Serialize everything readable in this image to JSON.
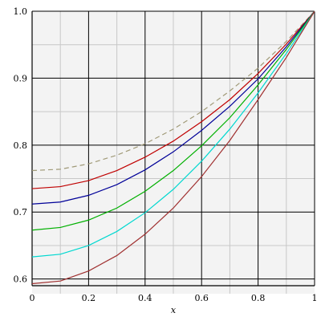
{
  "chart_data": {
    "type": "line",
    "xlabel": "x",
    "ylabel": "",
    "xlim": [
      0,
      1
    ],
    "ylim": [
      0.59,
      1.0
    ],
    "xticks": [
      0,
      0.2,
      0.4,
      0.6,
      0.8,
      1
    ],
    "xtick_labels": [
      "0",
      "0.2",
      "0.4",
      "0.6",
      "0.8",
      "1"
    ],
    "yticks": [
      0.6,
      0.7,
      0.8,
      0.9,
      1.0
    ],
    "ytick_labels": [
      "0.6",
      "0.7",
      "0.8",
      "0.9",
      "1.0"
    ],
    "grid": true,
    "x": [
      0,
      0.1,
      0.2,
      0.3,
      0.4,
      0.5,
      0.6,
      0.7,
      0.8,
      0.9,
      1.0
    ],
    "series": [
      {
        "color": "#a09a78",
        "dashed": true,
        "values": [
          0.762,
          0.764,
          0.772,
          0.785,
          0.802,
          0.824,
          0.85,
          0.881,
          0.915,
          0.955,
          1.0
        ]
      },
      {
        "color": "#c00000",
        "dashed": false,
        "values": [
          0.735,
          0.738,
          0.747,
          0.762,
          0.782,
          0.806,
          0.835,
          0.868,
          0.907,
          0.951,
          1.0
        ]
      },
      {
        "color": "#000098",
        "dashed": false,
        "values": [
          0.712,
          0.715,
          0.725,
          0.741,
          0.763,
          0.79,
          0.822,
          0.858,
          0.899,
          0.947,
          1.0
        ]
      },
      {
        "color": "#00b000",
        "dashed": false,
        "values": [
          0.673,
          0.677,
          0.688,
          0.706,
          0.731,
          0.762,
          0.799,
          0.841,
          0.89,
          0.943,
          1.0
        ]
      },
      {
        "color": "#00d8d0",
        "dashed": false,
        "values": [
          0.633,
          0.637,
          0.65,
          0.671,
          0.699,
          0.734,
          0.776,
          0.824,
          0.878,
          0.937,
          1.0
        ]
      },
      {
        "color": "#a03030",
        "dashed": false,
        "values": [
          0.593,
          0.597,
          0.612,
          0.635,
          0.667,
          0.706,
          0.753,
          0.807,
          0.868,
          0.931,
          1.0
        ]
      }
    ]
  }
}
